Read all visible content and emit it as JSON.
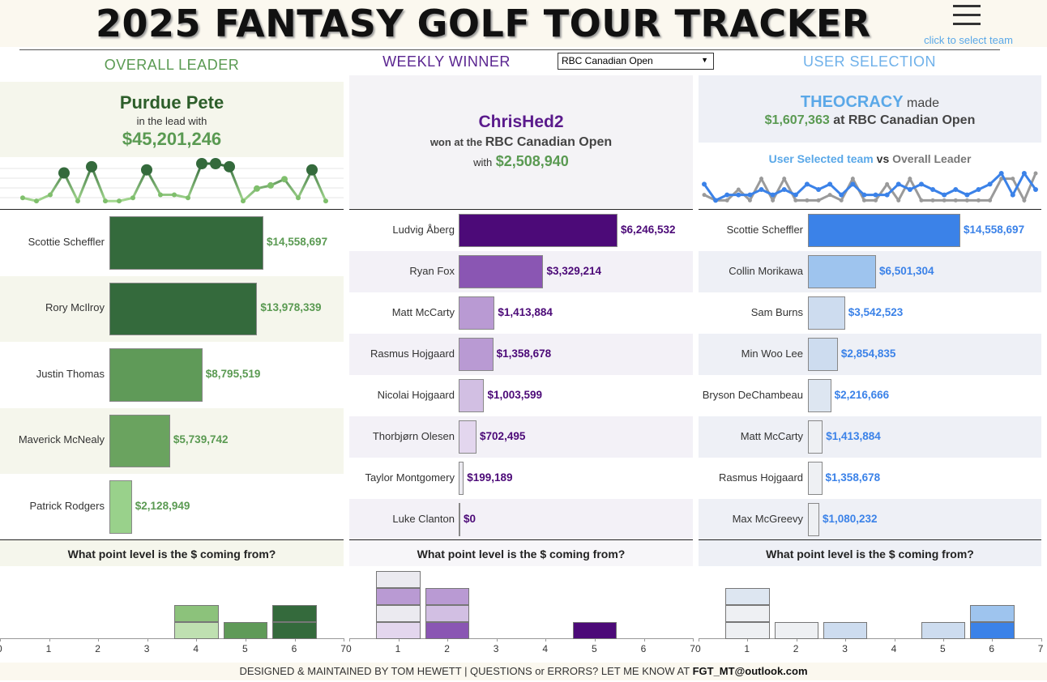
{
  "header": {
    "title": "2025 FANTASY GOLF TOUR TRACKER",
    "menu_hint": "click to select team"
  },
  "colors": {
    "green_dark": "#346a3c",
    "green_mid": "#5f9a58",
    "green_light": "#99d18b",
    "purple_dark": "#4c0a78",
    "purple_mid": "#8a56b3",
    "blue_bright": "#3b82e8",
    "blue_light": "#9ec4ee"
  },
  "overall": {
    "section_title": "OVERALL LEADER",
    "leader_name": "Purdue Pete",
    "lead_text": "in the lead with",
    "leader_total": "$45,201,246",
    "sparkline": [
      2,
      1,
      3,
      10,
      1,
      12,
      1,
      1,
      2,
      11,
      3,
      3,
      2,
      13,
      13,
      12,
      1,
      5,
      6,
      8,
      2,
      11,
      1
    ],
    "players": [
      {
        "name": "Scottie Scheffler",
        "value": "$14,558,697",
        "amount": 14558697
      },
      {
        "name": "Rory McIlroy",
        "value": "$13,978,339",
        "amount": 13978339
      },
      {
        "name": "Justin Thomas",
        "value": "$8,795,519",
        "amount": 8795519
      },
      {
        "name": "Maverick McNealy",
        "value": "$5,739,742",
        "amount": 5739742
      },
      {
        "name": "Patrick Rodgers",
        "value": "$2,128,949",
        "amount": 2128949
      }
    ],
    "question": "What point level is the $ coming from?",
    "histogram": [
      {
        "level": 4,
        "stack": [
          1,
          1
        ]
      },
      {
        "level": 5,
        "stack": [
          1
        ]
      },
      {
        "level": 6,
        "stack": [
          1,
          1
        ]
      }
    ]
  },
  "weekly": {
    "section_title": "WEEKLY WINNER",
    "selected_event": "RBC Canadian Open",
    "winner_name": "ChrisHed2",
    "won_at": "won at the",
    "event_name": "RBC Canadian Open",
    "with_text": "with",
    "winner_total": "$2,508,940",
    "players": [
      {
        "name": "Ludvig Åberg",
        "value": "$6,246,532",
        "amount": 6246532
      },
      {
        "name": "Ryan Fox",
        "value": "$3,329,214",
        "amount": 3329214
      },
      {
        "name": "Matt McCarty",
        "value": "$1,413,884",
        "amount": 1413884
      },
      {
        "name": "Rasmus Hojgaard",
        "value": "$1,358,678",
        "amount": 1358678
      },
      {
        "name": "Nicolai Hojgaard",
        "value": "$1,003,599",
        "amount": 1003599
      },
      {
        "name": "Thorbjørn Olesen",
        "value": "$702,495",
        "amount": 702495
      },
      {
        "name": "Taylor Montgomery",
        "value": "$199,189",
        "amount": 199189
      },
      {
        "name": "Luke Clanton",
        "value": "$0",
        "amount": 0
      }
    ],
    "question": "What point level is the $ coming from?",
    "histogram": [
      {
        "level": 1,
        "stack": [
          1,
          1,
          1,
          1
        ]
      },
      {
        "level": 2,
        "stack": [
          1,
          1,
          1
        ]
      },
      {
        "level": 5,
        "stack": [
          1
        ]
      }
    ]
  },
  "user": {
    "section_title": "USER SELECTION",
    "team_name": "THEOCRACY",
    "made_text": "made",
    "team_total": "$1,607,363",
    "at_text": "at",
    "event_name": "RBC Canadian Open",
    "compare_team": "User Selected team",
    "compare_vs": "vs",
    "compare_leader": "Overall Leader",
    "series_user": [
      4,
      1,
      2,
      2,
      2,
      3,
      2,
      3,
      2,
      4,
      3,
      4,
      2,
      4,
      2,
      2,
      2,
      4,
      3,
      4,
      3,
      2,
      3,
      2,
      3,
      4,
      6,
      2,
      6,
      3
    ],
    "series_leader": [
      2,
      1,
      1,
      3,
      1,
      5,
      1,
      5,
      1,
      1,
      1,
      2,
      1,
      5,
      1,
      1,
      4,
      1,
      5,
      1,
      1,
      1,
      1,
      1,
      1,
      1,
      5,
      5,
      1,
      6
    ],
    "players": [
      {
        "name": "Scottie Scheffler",
        "value": "$14,558,697",
        "amount": 14558697
      },
      {
        "name": "Collin Morikawa",
        "value": "$6,501,304",
        "amount": 6501304
      },
      {
        "name": "Sam Burns",
        "value": "$3,542,523",
        "amount": 3542523
      },
      {
        "name": "Min Woo Lee",
        "value": "$2,854,835",
        "amount": 2854835
      },
      {
        "name": "Bryson DeChambeau",
        "value": "$2,216,666",
        "amount": 2216666
      },
      {
        "name": "Matt McCarty",
        "value": "$1,413,884",
        "amount": 1413884
      },
      {
        "name": "Rasmus Hojgaard",
        "value": "$1,358,678",
        "amount": 1358678
      },
      {
        "name": "Max McGreevy",
        "value": "$1,080,232",
        "amount": 1080232
      }
    ],
    "question": "What point level is the $ coming from?",
    "histogram": [
      {
        "level": 1,
        "stack": [
          1,
          1,
          1
        ]
      },
      {
        "level": 2,
        "stack": [
          1
        ]
      },
      {
        "level": 3,
        "stack": [
          1
        ]
      },
      {
        "level": 5,
        "stack": [
          1
        ]
      },
      {
        "level": 6,
        "stack": [
          1,
          1
        ]
      }
    ]
  },
  "axis": {
    "ticks": [
      "0",
      "1",
      "2",
      "3",
      "4",
      "5",
      "6",
      "7"
    ]
  },
  "footer": {
    "text": "DESIGNED & MAINTAINED BY TOM HEWETT  |  QUESTIONS or ERRORS? LET ME KNOW AT",
    "email": "FGT_MT@outlook.com"
  }
}
